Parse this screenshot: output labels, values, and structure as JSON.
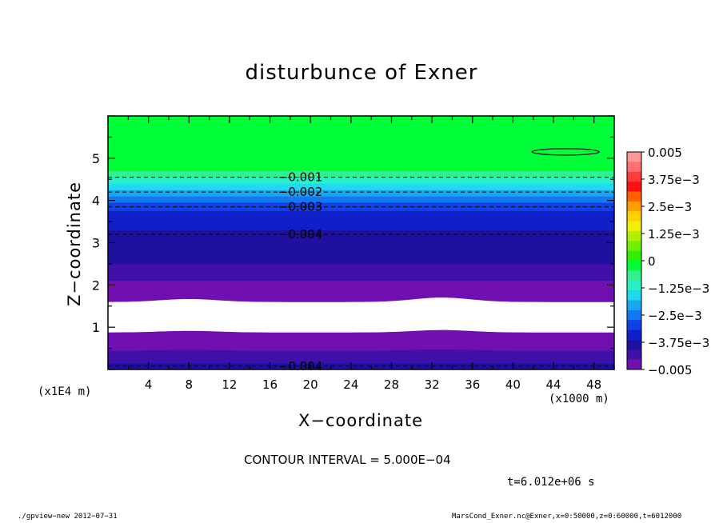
{
  "chart_data": {
    "type": "heatmap",
    "title": "disturbunce of Exner",
    "xlabel": "X−coordinate",
    "ylabel": "Z−coordinate",
    "x_unit_left": "(x1E4 m)",
    "x_unit_right": "(x1000 m)",
    "xlim": [
      0,
      50
    ],
    "ylim": [
      0,
      6
    ],
    "x_ticks": [
      "4",
      "8",
      "12",
      "16",
      "20",
      "24",
      "28",
      "32",
      "36",
      "40",
      "44",
      "48"
    ],
    "y_ticks": [
      "1",
      "2",
      "3",
      "4",
      "5"
    ],
    "bands": [
      {
        "z0": 0.0,
        "z1": 0.15,
        "color": "#2010a0"
      },
      {
        "z0": 0.15,
        "z1": 0.45,
        "color": "#4010a8"
      },
      {
        "z0": 0.45,
        "z1": 0.88,
        "color": "#7010b0"
      },
      {
        "z0": 0.88,
        "z1": 1.6,
        "color": "#ffffff"
      },
      {
        "z0": 1.6,
        "z1": 2.1,
        "color": "#7010b0"
      },
      {
        "z0": 2.1,
        "z1": 2.5,
        "color": "#4010a8"
      },
      {
        "z0": 2.5,
        "z1": 3.3,
        "color": "#2010a0"
      },
      {
        "z0": 3.3,
        "z1": 3.75,
        "color": "#1020c8"
      },
      {
        "z0": 3.75,
        "z1": 3.95,
        "color": "#1040e8"
      },
      {
        "z0": 3.95,
        "z1": 4.1,
        "color": "#1478f0"
      },
      {
        "z0": 4.1,
        "z1": 4.25,
        "color": "#18a8f0"
      },
      {
        "z0": 4.25,
        "z1": 4.4,
        "color": "#20d8f0"
      },
      {
        "z0": 4.4,
        "z1": 4.55,
        "color": "#28f0c8"
      },
      {
        "z0": 4.55,
        "z1": 4.7,
        "color": "#30f090"
      },
      {
        "z0": 4.7,
        "z1": 6.0,
        "color": "#00ff38"
      }
    ],
    "contours": [
      {
        "level": "−0.001",
        "z": 4.55
      },
      {
        "level": "−0.002",
        "z": 4.2
      },
      {
        "level": "−0.003",
        "z": 3.85
      },
      {
        "level": "−0.004",
        "z": 3.2
      },
      {
        "level": "−0.004",
        "z": 0.08
      }
    ],
    "colorbar": {
      "labels": [
        "0.005",
        "3.75e−3",
        "2.5e−3",
        "1.25e−3",
        "0",
        "−1.25e−3",
        "−2.5e−3",
        "−3.75e−3",
        "−0.005"
      ],
      "colors": [
        "#ff9898",
        "#ff7070",
        "#ff3c3c",
        "#ff1010",
        "#ff6000",
        "#ff9c00",
        "#ffd000",
        "#f0f000",
        "#b0f000",
        "#70f000",
        "#30f000",
        "#00ff38",
        "#30f090",
        "#28f0c8",
        "#20d8f0",
        "#18a8f0",
        "#1478f0",
        "#1040e8",
        "#1020c8",
        "#2010a0",
        "#4010a8",
        "#7010b0"
      ]
    }
  },
  "texts": {
    "contour_interval": "CONTOUR INTERVAL = 5.000E−04",
    "time": "t=6.012e+06 s",
    "footer_left": "./gpview−new  2012−07−31",
    "footer_right": "MarsCond_Exner.nc@Exner,x=0:50000,z=0:60000,t=6012000"
  }
}
